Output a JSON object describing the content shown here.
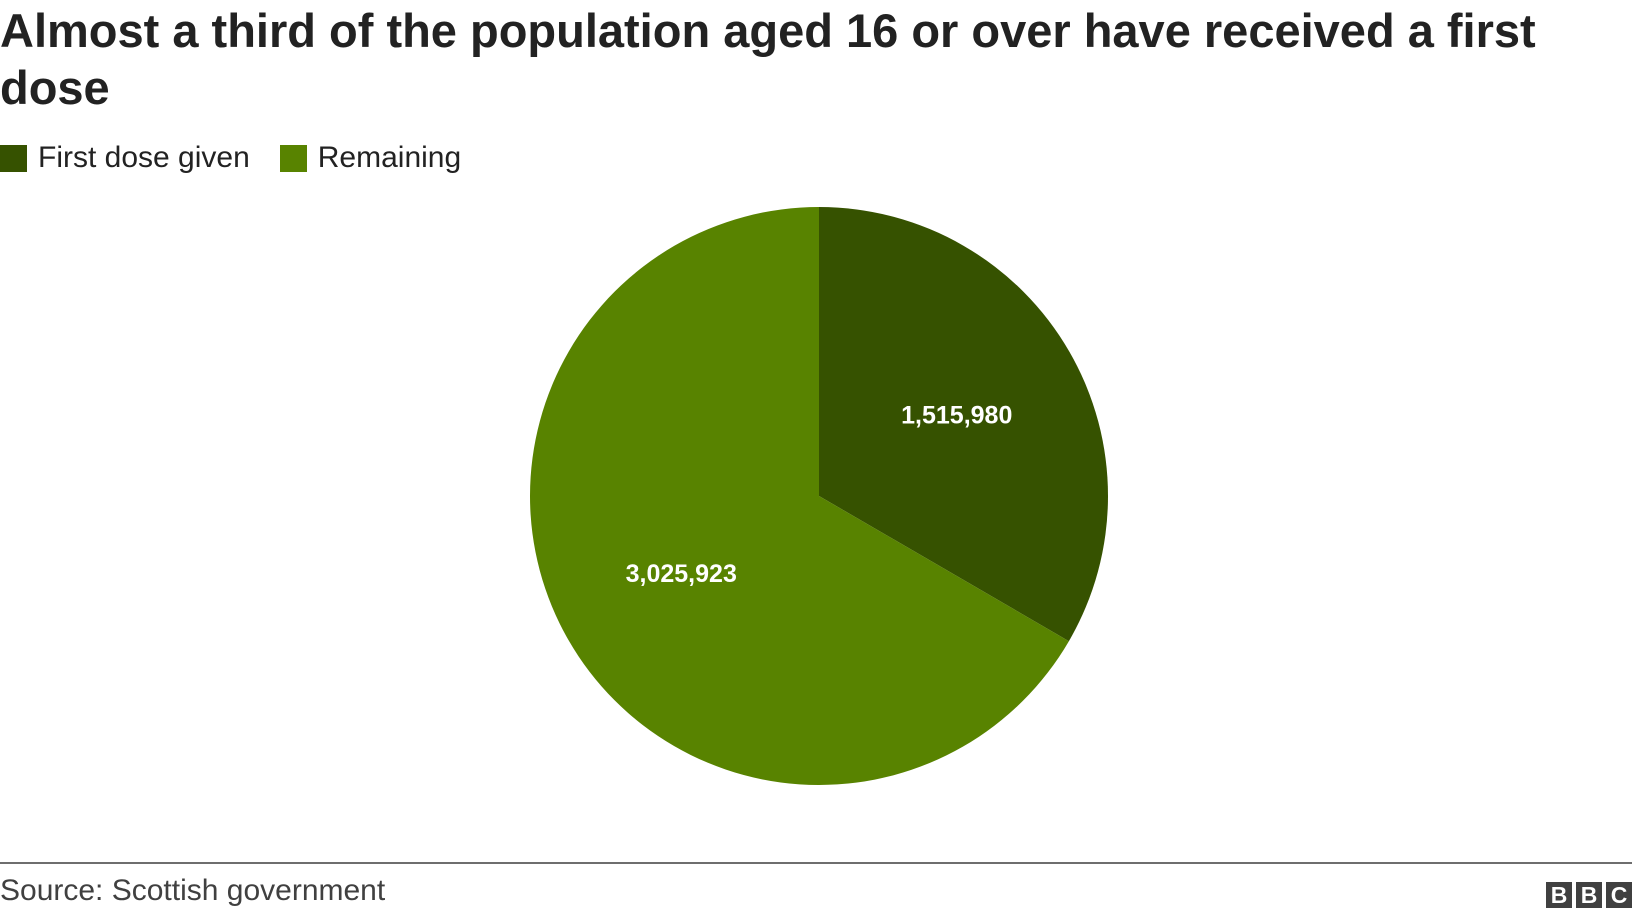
{
  "chart_data": {
    "type": "pie",
    "title": "Almost a third of the population aged 16 or over have received a first dose",
    "categories": [
      "First dose given",
      "Remaining"
    ],
    "values": [
      1515980,
      3025923
    ],
    "data_labels": [
      "1,515,980",
      "3,025,923"
    ],
    "colors": [
      "#365200",
      "#588300"
    ],
    "start_angle_deg": 0,
    "direction": "clockwise",
    "legend_placement": "top-left"
  },
  "source": "Source: Scottish government",
  "logo": {
    "letters": [
      "B",
      "B",
      "C"
    ],
    "color": "#404040"
  }
}
